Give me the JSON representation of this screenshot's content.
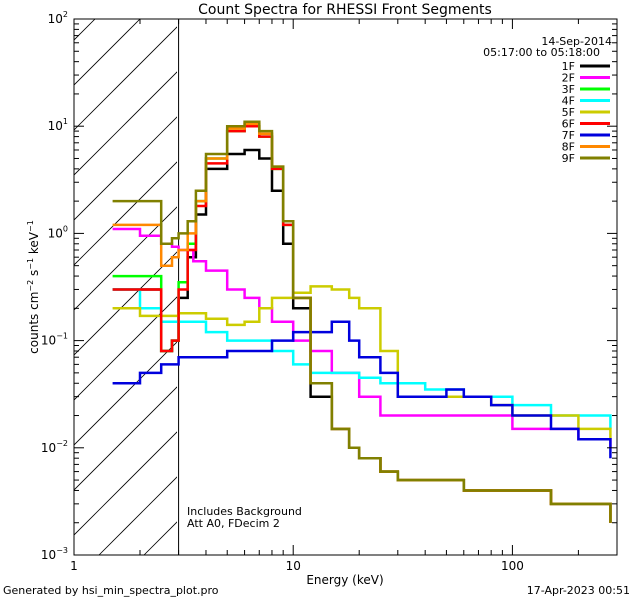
{
  "chart_data": {
    "type": "line",
    "title": "Count Spectra for RHESSI Front Segments",
    "xlabel": "Energy (keV)",
    "ylabel": "counts cm-2 s-1 keV-1",
    "xscale": "log",
    "yscale": "log",
    "xlim": [
      1.0,
      300.0
    ],
    "ylim": [
      0.001,
      100.0
    ],
    "x_tick_labels": [
      "1",
      "10",
      "100"
    ],
    "y_tick_labels": [
      "10^-3",
      "10^-2",
      "10^-1",
      "10^0",
      "10^1",
      "10^2"
    ],
    "hatched_region_keV": [
      1.0,
      3.0
    ],
    "date_label": "14-Sep-2014",
    "time_range_label": "05:17:00 to 05:18:00",
    "annotations": [
      "Includes Background",
      "Att A0, FDecim 2"
    ],
    "series": [
      {
        "name": "1F",
        "color": "#000000",
        "x": [
          1.5,
          2.5,
          2.8,
          3.0,
          3.3,
          3.6,
          4.0,
          5.0,
          6.0,
          7.0,
          8.0,
          9.0,
          10.0,
          12.0,
          15.0,
          18.0,
          20.0,
          25.0,
          30.0,
          40.0,
          60.0,
          100.0,
          150.0,
          200.0,
          280.0
        ],
        "y": [
          0.3,
          0.08,
          0.1,
          0.25,
          0.6,
          1.5,
          4.0,
          5.5,
          6.0,
          5.0,
          2.5,
          0.8,
          0.2,
          0.03,
          0.015,
          0.01,
          0.008,
          0.006,
          0.005,
          0.005,
          0.004,
          0.004,
          0.003,
          0.003,
          0.002
        ]
      },
      {
        "name": "2F",
        "color": "#ff00ff",
        "x": [
          1.5,
          2.0,
          2.5,
          2.8,
          3.0,
          3.5,
          4.0,
          5.0,
          6.0,
          7.0,
          8.0,
          10.0,
          12.0,
          15.0,
          20.0,
          25.0,
          30.0,
          40.0,
          60.0,
          80.0,
          100.0,
          150.0,
          200.0,
          280.0
        ],
        "y": [
          1.1,
          0.95,
          0.8,
          0.75,
          0.7,
          0.55,
          0.45,
          0.3,
          0.25,
          0.2,
          0.15,
          0.1,
          0.08,
          0.05,
          0.03,
          0.02,
          0.02,
          0.02,
          0.02,
          0.02,
          0.015,
          0.015,
          0.012,
          0.01
        ]
      },
      {
        "name": "3F",
        "color": "#00ff00",
        "x": [
          1.5,
          2.5,
          2.8,
          3.0,
          3.3,
          3.6,
          4.0,
          5.0,
          6.0,
          7.0,
          8.0,
          9.0,
          10.0,
          12.0,
          15.0,
          18.0,
          20.0,
          25.0,
          30.0,
          40.0,
          60.0,
          100.0,
          150.0,
          200.0,
          280.0
        ],
        "y": [
          0.4,
          0.08,
          0.1,
          0.35,
          0.8,
          2.0,
          5.0,
          9.0,
          10.0,
          8.0,
          4.0,
          1.2,
          0.25,
          0.04,
          0.015,
          0.01,
          0.008,
          0.006,
          0.005,
          0.005,
          0.004,
          0.004,
          0.003,
          0.003,
          0.002
        ]
      },
      {
        "name": "4F",
        "color": "#00ffff",
        "x": [
          1.5,
          2.0,
          2.5,
          3.0,
          4.0,
          5.0,
          6.0,
          8.0,
          10.0,
          12.0,
          15.0,
          20.0,
          25.0,
          30.0,
          40.0,
          60.0,
          80.0,
          100.0,
          150.0,
          200.0,
          280.0
        ],
        "y": [
          0.3,
          0.2,
          0.15,
          0.15,
          0.12,
          0.1,
          0.1,
          0.08,
          0.06,
          0.05,
          0.05,
          0.045,
          0.04,
          0.04,
          0.035,
          0.03,
          0.03,
          0.025,
          0.02,
          0.02,
          0.015
        ]
      },
      {
        "name": "5F",
        "color": "#cccc00",
        "x": [
          1.5,
          2.0,
          2.5,
          3.0,
          4.0,
          5.0,
          6.0,
          7.0,
          8.0,
          10.0,
          12.0,
          15.0,
          18.0,
          20.0,
          25.0,
          30.0,
          40.0,
          60.0,
          80.0,
          100.0,
          150.0,
          200.0,
          280.0
        ],
        "y": [
          0.2,
          0.17,
          0.17,
          0.18,
          0.16,
          0.14,
          0.15,
          0.2,
          0.25,
          0.28,
          0.32,
          0.3,
          0.25,
          0.2,
          0.08,
          0.03,
          0.03,
          0.03,
          0.025,
          0.02,
          0.02,
          0.015,
          0.012
        ]
      },
      {
        "name": "6F",
        "color": "#ff0000",
        "x": [
          1.5,
          2.5,
          2.8,
          3.0,
          3.3,
          3.6,
          4.0,
          5.0,
          6.0,
          7.0,
          8.0,
          9.0,
          10.0,
          12.0,
          15.0,
          18.0,
          20.0,
          25.0,
          30.0,
          40.0,
          60.0,
          100.0,
          150.0,
          200.0,
          280.0
        ],
        "y": [
          0.3,
          0.08,
          0.1,
          0.3,
          0.7,
          1.8,
          4.5,
          9.0,
          10.0,
          8.0,
          4.0,
          1.2,
          0.25,
          0.04,
          0.015,
          0.01,
          0.008,
          0.006,
          0.005,
          0.005,
          0.004,
          0.004,
          0.003,
          0.003,
          0.002
        ]
      },
      {
        "name": "7F",
        "color": "#0000dd",
        "x": [
          1.5,
          2.0,
          2.5,
          3.0,
          4.0,
          5.0,
          6.0,
          8.0,
          10.0,
          12.0,
          15.0,
          18.0,
          20.0,
          25.0,
          30.0,
          40.0,
          50.0,
          60.0,
          80.0,
          100.0,
          150.0,
          200.0,
          280.0
        ],
        "y": [
          0.04,
          0.05,
          0.06,
          0.07,
          0.07,
          0.08,
          0.08,
          0.1,
          0.12,
          0.12,
          0.15,
          0.1,
          0.07,
          0.05,
          0.03,
          0.03,
          0.035,
          0.03,
          0.025,
          0.02,
          0.015,
          0.012,
          0.008
        ]
      },
      {
        "name": "8F",
        "color": "#ff8800",
        "x": [
          1.5,
          2.5,
          2.8,
          3.0,
          3.3,
          3.6,
          4.0,
          5.0,
          6.0,
          7.0,
          8.0,
          9.0,
          10.0,
          12.0,
          15.0,
          18.0,
          20.0,
          25.0,
          30.0,
          40.0,
          60.0,
          100.0,
          150.0,
          200.0,
          280.0
        ],
        "y": [
          1.2,
          0.5,
          0.6,
          0.7,
          1.0,
          2.0,
          5.0,
          9.5,
          10.5,
          8.5,
          4.2,
          1.3,
          0.25,
          0.04,
          0.015,
          0.01,
          0.008,
          0.006,
          0.005,
          0.005,
          0.004,
          0.004,
          0.003,
          0.003,
          0.002
        ]
      },
      {
        "name": "9F",
        "color": "#808000",
        "x": [
          1.5,
          2.5,
          2.8,
          3.0,
          3.3,
          3.6,
          4.0,
          5.0,
          6.0,
          7.0,
          8.0,
          9.0,
          10.0,
          12.0,
          15.0,
          18.0,
          20.0,
          25.0,
          30.0,
          40.0,
          60.0,
          100.0,
          150.0,
          200.0,
          280.0
        ],
        "y": [
          2.0,
          0.8,
          0.9,
          1.0,
          1.3,
          2.5,
          5.5,
          10.0,
          11.0,
          9.0,
          4.2,
          1.3,
          0.25,
          0.04,
          0.015,
          0.01,
          0.008,
          0.006,
          0.005,
          0.005,
          0.004,
          0.004,
          0.003,
          0.003,
          0.002
        ]
      }
    ]
  },
  "footer": {
    "generated": "Generated by hsi_min_spectra_plot.pro",
    "timestamp": "17-Apr-2023 00:51"
  }
}
